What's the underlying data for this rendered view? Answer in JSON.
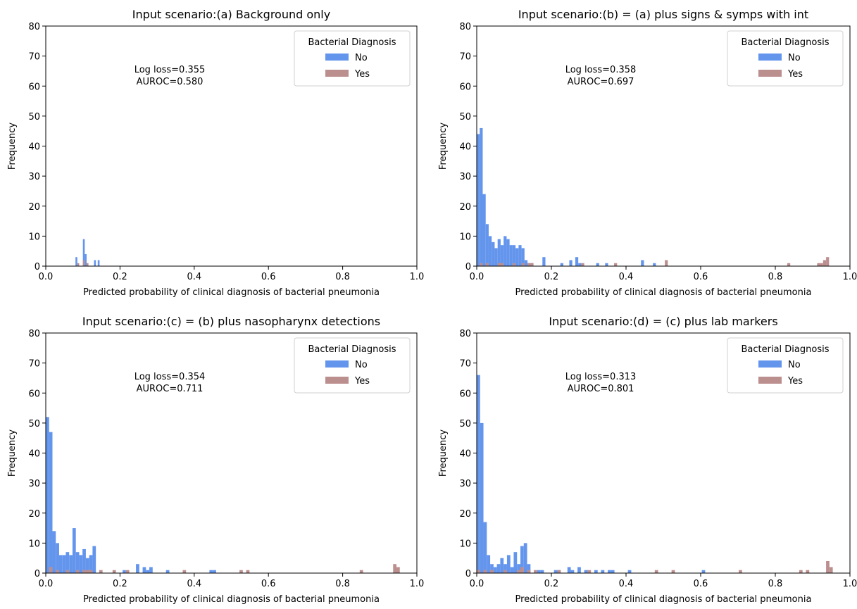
{
  "colors": {
    "no": "#6495ED",
    "yes": "#BC8F8F"
  },
  "chart_data": [
    {
      "type": "histogram",
      "title": "Input scenario:(a) Background only",
      "xlabel": "Predicted probability of clinical diagnosis of bacterial pneumonia",
      "ylabel": "Frequency",
      "xlim": [
        0,
        1
      ],
      "ylim": [
        0,
        80
      ],
      "xticks": [
        "0.0",
        "0.2",
        "0.4",
        "0.6",
        "0.8",
        "1.0"
      ],
      "yticks": [
        "0",
        "10",
        "20",
        "30",
        "40",
        "50",
        "60",
        "70",
        "80"
      ],
      "bin_width": 0.005,
      "legend": {
        "title": "Bacterial Diagnosis",
        "position": "top-right",
        "items": [
          "No",
          "Yes"
        ]
      },
      "annotation": [
        "Log loss=0.355",
        "AUROC=0.580"
      ],
      "series": [
        {
          "name": "No",
          "x": [
            0.08,
            0.1,
            0.105,
            0.13,
            0.14
          ],
          "values": [
            3,
            9,
            4,
            2,
            2
          ]
        },
        {
          "name": "Yes",
          "x": [
            0.085,
            0.1,
            0.11
          ],
          "values": [
            1,
            2,
            1
          ]
        }
      ]
    },
    {
      "type": "histogram",
      "title": "Input scenario:(b) = (a) plus signs & symps with int",
      "xlabel": "Predicted probability of clinical diagnosis of bacterial pneumonia",
      "ylabel": "Frequency",
      "xlim": [
        0,
        1
      ],
      "ylim": [
        0,
        80
      ],
      "xticks": [
        "0.0",
        "0.2",
        "0.4",
        "0.6",
        "0.8",
        "1.0"
      ],
      "yticks": [
        "0",
        "10",
        "20",
        "30",
        "40",
        "50",
        "60",
        "70",
        "80"
      ],
      "bin_width": 0.008,
      "legend": {
        "title": "Bacterial Diagnosis",
        "position": "top-right",
        "items": [
          "No",
          "Yes"
        ]
      },
      "annotation": [
        "Log loss=0.358",
        "AUROC=0.697"
      ],
      "series": [
        {
          "name": "No",
          "x": [
            0.0,
            0.008,
            0.016,
            0.024,
            0.032,
            0.04,
            0.048,
            0.056,
            0.064,
            0.072,
            0.08,
            0.088,
            0.096,
            0.104,
            0.112,
            0.12,
            0.128,
            0.136,
            0.144,
            0.176,
            0.224,
            0.248,
            0.264,
            0.272,
            0.32,
            0.344,
            0.44,
            0.472
          ],
          "values": [
            44,
            46,
            24,
            14,
            10,
            8,
            6,
            9,
            7,
            10,
            9,
            7,
            7,
            6,
            7,
            6,
            2,
            1,
            1,
            3,
            1,
            2,
            3,
            1,
            1,
            1,
            2,
            1
          ]
        },
        {
          "name": "Yes",
          "x": [
            0.008,
            0.024,
            0.056,
            0.064,
            0.096,
            0.12,
            0.136,
            0.144,
            0.28,
            0.368,
            0.504,
            0.832,
            0.912,
            0.92,
            0.928,
            0.936
          ],
          "values": [
            1,
            1,
            1,
            1,
            1,
            1,
            1,
            1,
            1,
            1,
            2,
            1,
            1,
            1,
            2,
            3
          ]
        }
      ]
    },
    {
      "type": "histogram",
      "title": "Input scenario:(c) = (b) plus nasopharynx detections",
      "xlabel": "Predicted probability of clinical diagnosis of bacterial pneumonia",
      "ylabel": "Frequency",
      "xlim": [
        0,
        1
      ],
      "ylim": [
        0,
        80
      ],
      "xticks": [
        "0.0",
        "0.2",
        "0.4",
        "0.6",
        "0.8",
        "1.0"
      ],
      "yticks": [
        "0",
        "10",
        "20",
        "30",
        "40",
        "50",
        "60",
        "70",
        "80"
      ],
      "bin_width": 0.009,
      "legend": {
        "title": "Bacterial Diagnosis",
        "position": "top-right",
        "items": [
          "No",
          "Yes"
        ]
      },
      "annotation": [
        "Log loss=0.354",
        "AUROC=0.711"
      ],
      "series": [
        {
          "name": "No",
          "x": [
            0.0,
            0.009,
            0.018,
            0.027,
            0.036,
            0.045,
            0.054,
            0.063,
            0.072,
            0.081,
            0.09,
            0.099,
            0.108,
            0.117,
            0.126,
            0.207,
            0.243,
            0.261,
            0.27,
            0.279,
            0.324,
            0.441,
            0.45
          ],
          "values": [
            52,
            47,
            14,
            10,
            6,
            6,
            7,
            6,
            15,
            7,
            6,
            8,
            5,
            6,
            9,
            1,
            3,
            2,
            1,
            2,
            1,
            1,
            1
          ]
        },
        {
          "name": "Yes",
          "x": [
            0.009,
            0.027,
            0.054,
            0.081,
            0.099,
            0.108,
            0.117,
            0.144,
            0.18,
            0.216,
            0.369,
            0.522,
            0.54,
            0.846,
            0.936,
            0.945
          ],
          "values": [
            2,
            1,
            1,
            1,
            1,
            1,
            1,
            1,
            1,
            1,
            1,
            1,
            1,
            1,
            3,
            2
          ]
        }
      ]
    },
    {
      "type": "histogram",
      "title": "Input scenario:(d) = (c) plus lab markers",
      "xlabel": "Predicted probability of clinical diagnosis of bacterial pneumonia",
      "ylabel": "Frequency",
      "xlim": [
        0,
        1
      ],
      "ylim": [
        0,
        80
      ],
      "xticks": [
        "0.0",
        "0.2",
        "0.4",
        "0.6",
        "0.8",
        "1.0"
      ],
      "yticks": [
        "0",
        "10",
        "20",
        "30",
        "40",
        "50",
        "60",
        "70",
        "80"
      ],
      "bin_width": 0.009,
      "legend": {
        "title": "Bacterial Diagnosis",
        "position": "top-right",
        "items": [
          "No",
          "Yes"
        ]
      },
      "annotation": [
        "Log loss=0.313",
        "AUROC=0.801"
      ],
      "series": [
        {
          "name": "No",
          "x": [
            0.0,
            0.009,
            0.018,
            0.027,
            0.036,
            0.045,
            0.054,
            0.063,
            0.072,
            0.081,
            0.09,
            0.099,
            0.108,
            0.117,
            0.126,
            0.135,
            0.162,
            0.171,
            0.207,
            0.216,
            0.243,
            0.252,
            0.27,
            0.288,
            0.315,
            0.333,
            0.351,
            0.36,
            0.405,
            0.603
          ],
          "values": [
            66,
            50,
            17,
            6,
            3,
            2,
            3,
            5,
            3,
            6,
            2,
            7,
            3,
            9,
            10,
            3,
            1,
            1,
            1,
            1,
            2,
            1,
            2,
            1,
            1,
            1,
            1,
            1,
            1,
            1
          ]
        },
        {
          "name": "Yes",
          "x": [
            0.0,
            0.018,
            0.036,
            0.072,
            0.108,
            0.117,
            0.135,
            0.153,
            0.216,
            0.297,
            0.477,
            0.522,
            0.702,
            0.864,
            0.882,
            0.936,
            0.945
          ],
          "values": [
            1,
            1,
            1,
            1,
            1,
            2,
            1,
            1,
            1,
            1,
            1,
            1,
            1,
            1,
            1,
            4,
            2
          ]
        }
      ]
    }
  ]
}
